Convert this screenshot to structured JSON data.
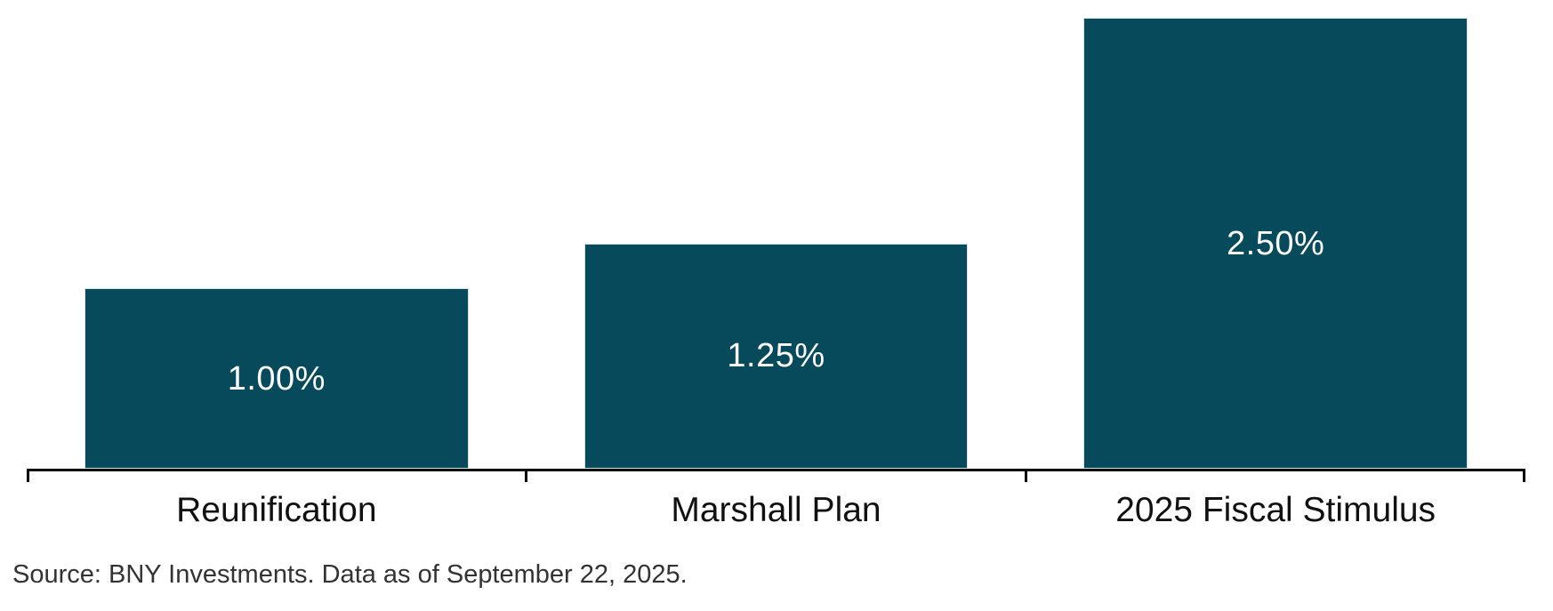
{
  "chart_data": {
    "type": "bar",
    "categories": [
      "Reunification",
      "Marshall Plan",
      "2025 Fiscal Stimulus"
    ],
    "values": [
      1.0,
      1.25,
      2.5
    ],
    "value_labels": [
      "1.00%",
      "1.25%",
      "2.50%"
    ],
    "unit": "%",
    "title": "",
    "xlabel": "",
    "ylabel": "",
    "ylim": [
      0,
      2.6
    ],
    "grid": false,
    "legend": false,
    "value_label_position": "inside-center",
    "bar_color": "#064A5C",
    "bar_border_color": "#D5E3E8",
    "value_label_color": "#FFFFFF",
    "axis_color": "#000000",
    "category_label_color": "#111111"
  },
  "footer": {
    "source_note": "Source: BNY Investments. Data as of September 22, 2025."
  }
}
